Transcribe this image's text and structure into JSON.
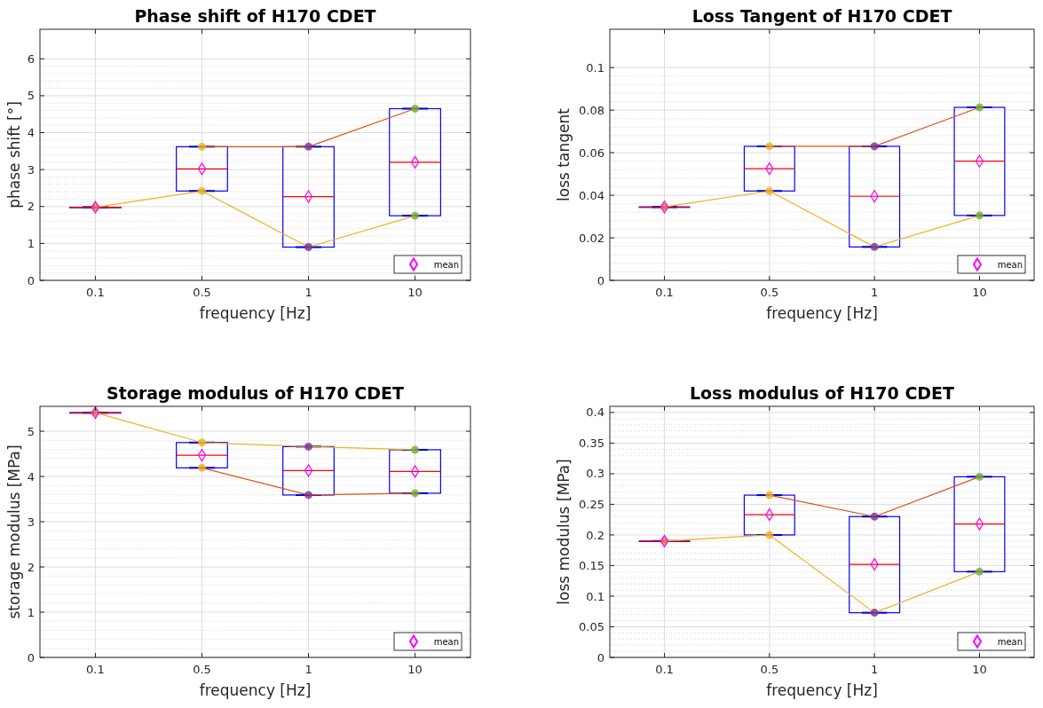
{
  "chart_data": [
    {
      "type": "box",
      "title": "Phase shift of H170 CDET",
      "xlabel": "frequency [Hz]",
      "ylabel": "phase shift [°]",
      "categories": [
        "0.1",
        "0.5",
        "1",
        "10"
      ],
      "ylim": [
        0,
        6.8
      ],
      "yticks": [
        0,
        1,
        2,
        3,
        4,
        5,
        6
      ],
      "grid": true,
      "legend": "bottom right",
      "series": [
        {
          "type": "box",
          "color": "#0000ff",
          "boxes": [
            {
              "low": 1.98,
              "q1": 1.98,
              "median": 1.98,
              "q3": 1.98,
              "high": 1.98
            },
            {
              "low": 2.42,
              "q1": 2.42,
              "median": 3.02,
              "q3": 3.62,
              "high": 3.62
            },
            {
              "low": 0.9,
              "q1": 0.9,
              "median": 2.27,
              "q3": 3.62,
              "high": 3.62
            },
            {
              "low": 1.75,
              "q1": 1.75,
              "median": 3.2,
              "q3": 4.65,
              "high": 4.65
            }
          ]
        },
        {
          "type": "line",
          "color": "#d95319",
          "values": [
            null,
            3.62,
            3.62,
            4.65
          ]
        },
        {
          "type": "line",
          "color": "#edb120",
          "values": [
            1.98,
            2.42,
            0.9,
            1.75
          ]
        },
        {
          "type": "scatter",
          "marker": "circle",
          "x": [
            "0.1",
            "0.5",
            "0.5",
            "1",
            "1",
            "10",
            "10"
          ],
          "values": [
            1.98,
            3.62,
            2.42,
            3.62,
            0.9,
            4.65,
            1.75
          ],
          "colors": [
            "#d9843a",
            "#edb120",
            "#edb120",
            "#7e2f8e",
            "#7e2f8e",
            "#77ac30",
            "#77ac30"
          ]
        },
        {
          "type": "scatter",
          "name": "mean",
          "marker": "diamond",
          "color": "#ff00ff",
          "x": [
            "0.1",
            "0.5",
            "1",
            "10"
          ],
          "values": [
            1.98,
            3.02,
            2.27,
            3.2
          ]
        }
      ]
    },
    {
      "type": "box",
      "title": "Loss Tangent of H170 CDET",
      "xlabel": "frequency [Hz]",
      "ylabel": "loss tangent",
      "categories": [
        "0.1",
        "0.5",
        "1",
        "10"
      ],
      "ylim": [
        0,
        0.118
      ],
      "yticks": [
        0,
        0.02,
        0.04,
        0.06,
        0.08,
        0.1
      ],
      "grid": true,
      "legend": "bottom right",
      "series": [
        {
          "type": "box",
          "color": "#0000ff",
          "boxes": [
            {
              "low": 0.0345,
              "q1": 0.0345,
              "median": 0.0345,
              "q3": 0.0345,
              "high": 0.0345
            },
            {
              "low": 0.042,
              "q1": 0.042,
              "median": 0.0525,
              "q3": 0.063,
              "high": 0.063
            },
            {
              "low": 0.0157,
              "q1": 0.0157,
              "median": 0.0395,
              "q3": 0.063,
              "high": 0.063
            },
            {
              "low": 0.0305,
              "q1": 0.0305,
              "median": 0.056,
              "q3": 0.0813,
              "high": 0.0813
            }
          ]
        },
        {
          "type": "line",
          "color": "#d95319",
          "values": [
            null,
            0.063,
            0.063,
            0.0813
          ]
        },
        {
          "type": "line",
          "color": "#edb120",
          "values": [
            0.0345,
            0.042,
            0.0157,
            0.0305
          ]
        },
        {
          "type": "scatter",
          "marker": "circle",
          "x": [
            "0.1",
            "0.5",
            "0.5",
            "1",
            "1",
            "10",
            "10"
          ],
          "values": [
            0.0345,
            0.063,
            0.042,
            0.063,
            0.0157,
            0.0813,
            0.0305
          ],
          "colors": [
            "#d9843a",
            "#edb120",
            "#edb120",
            "#7e2f8e",
            "#7e2f8e",
            "#77ac30",
            "#77ac30"
          ]
        },
        {
          "type": "scatter",
          "name": "mean",
          "marker": "diamond",
          "color": "#ff00ff",
          "x": [
            "0.1",
            "0.5",
            "1",
            "10"
          ],
          "values": [
            0.0345,
            0.0525,
            0.0395,
            0.056
          ]
        }
      ]
    },
    {
      "type": "box",
      "title": "Storage modulus of H170 CDET",
      "xlabel": "frequency [Hz]",
      "ylabel": "storage modulus [MPa]",
      "categories": [
        "0.1",
        "0.5",
        "1",
        "10"
      ],
      "ylim": [
        0,
        5.55
      ],
      "yticks": [
        0,
        1,
        2,
        3,
        4,
        5
      ],
      "grid": true,
      "legend": "bottom right",
      "series": [
        {
          "type": "box",
          "color": "#0000ff",
          "boxes": [
            {
              "low": 5.41,
              "q1": 5.41,
              "median": 5.41,
              "q3": 5.41,
              "high": 5.41
            },
            {
              "low": 4.19,
              "q1": 4.19,
              "median": 4.47,
              "q3": 4.75,
              "high": 4.75
            },
            {
              "low": 3.59,
              "q1": 3.59,
              "median": 4.13,
              "q3": 4.66,
              "high": 4.66
            },
            {
              "low": 3.63,
              "q1": 3.63,
              "median": 4.11,
              "q3": 4.59,
              "high": 4.59
            }
          ]
        },
        {
          "type": "line",
          "color": "#d95319",
          "values": [
            null,
            4.19,
            3.59,
            3.63
          ]
        },
        {
          "type": "line",
          "color": "#edb120",
          "values": [
            5.41,
            4.75,
            4.66,
            4.59
          ]
        },
        {
          "type": "scatter",
          "marker": "circle",
          "x": [
            "0.1",
            "0.5",
            "0.5",
            "1",
            "1",
            "10",
            "10"
          ],
          "values": [
            5.41,
            4.75,
            4.19,
            4.66,
            3.59,
            4.59,
            3.63
          ],
          "colors": [
            "#d9843a",
            "#edb120",
            "#edb120",
            "#7e2f8e",
            "#7e2f8e",
            "#77ac30",
            "#77ac30"
          ]
        },
        {
          "type": "scatter",
          "name": "mean",
          "marker": "diamond",
          "color": "#ff00ff",
          "x": [
            "0.1",
            "0.5",
            "1",
            "10"
          ],
          "values": [
            5.41,
            4.47,
            4.13,
            4.11
          ]
        }
      ]
    },
    {
      "type": "box",
      "title": "Loss modulus of H170 CDET",
      "xlabel": "frequency [Hz]",
      "ylabel": "loss modulus [MPa]",
      "categories": [
        "0.1",
        "0.5",
        "1",
        "10"
      ],
      "ylim": [
        0,
        0.41
      ],
      "yticks": [
        0,
        0.05,
        0.1,
        0.15,
        0.2,
        0.25,
        0.3,
        0.35,
        0.4
      ],
      "grid": true,
      "legend": "bottom right",
      "series": [
        {
          "type": "box",
          "color": "#0000ff",
          "boxes": [
            {
              "low": 0.19,
              "q1": 0.19,
              "median": 0.19,
              "q3": 0.19,
              "high": 0.19
            },
            {
              "low": 0.2,
              "q1": 0.2,
              "median": 0.233,
              "q3": 0.265,
              "high": 0.265
            },
            {
              "low": 0.073,
              "q1": 0.073,
              "median": 0.152,
              "q3": 0.23,
              "high": 0.23
            },
            {
              "low": 0.14,
              "q1": 0.14,
              "median": 0.218,
              "q3": 0.295,
              "high": 0.295
            }
          ]
        },
        {
          "type": "line",
          "color": "#d95319",
          "values": [
            null,
            0.265,
            0.23,
            0.295
          ]
        },
        {
          "type": "line",
          "color": "#edb120",
          "values": [
            0.19,
            0.2,
            0.073,
            0.14
          ]
        },
        {
          "type": "scatter",
          "marker": "circle",
          "x": [
            "0.1",
            "0.5",
            "0.5",
            "1",
            "1",
            "10",
            "10"
          ],
          "values": [
            0.19,
            0.265,
            0.2,
            0.23,
            0.073,
            0.295,
            0.14
          ],
          "colors": [
            "#d9843a",
            "#edb120",
            "#edb120",
            "#7e2f8e",
            "#7e2f8e",
            "#77ac30",
            "#77ac30"
          ]
        },
        {
          "type": "scatter",
          "name": "mean",
          "marker": "diamond",
          "color": "#ff00ff",
          "x": [
            "0.1",
            "0.5",
            "1",
            "10"
          ],
          "values": [
            0.19,
            0.233,
            0.152,
            0.218
          ]
        }
      ]
    }
  ]
}
